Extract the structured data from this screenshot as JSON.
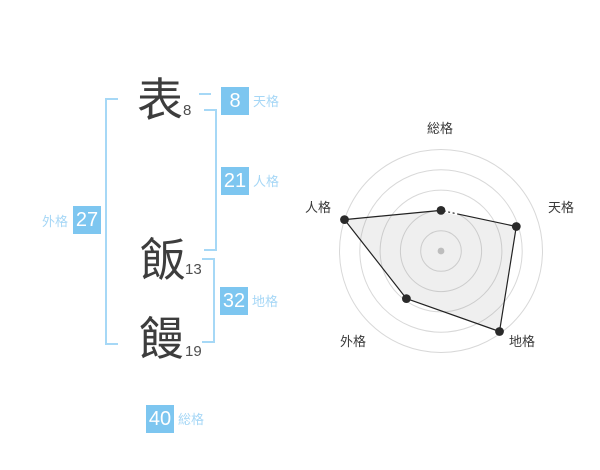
{
  "name": {
    "characters": [
      {
        "char": "表",
        "strokes": "8"
      },
      {
        "char": "飯",
        "strokes": "13"
      },
      {
        "char": "饅",
        "strokes": "19"
      }
    ]
  },
  "kaku": {
    "tenkaku": {
      "label": "天格",
      "value": "8"
    },
    "jinkaku": {
      "label": "人格",
      "value": "21"
    },
    "chikaku": {
      "label": "地格",
      "value": "32"
    },
    "gaikaku": {
      "label": "外格",
      "value": "27"
    },
    "soukaku": {
      "label": "総格",
      "value": "40"
    }
  },
  "colors": {
    "accent_box": "#7dc6f0",
    "accent_light": "#a6d8f6",
    "ink": "#3d3d3d",
    "grid_gray": "#d8d8d8",
    "fill_gray": "#f0f0f0"
  },
  "chart_data": {
    "type": "radar",
    "title": "",
    "axes": [
      "総格",
      "天格",
      "地格",
      "外格",
      "人格"
    ],
    "values": [
      2.0,
      3.9,
      4.9,
      2.9,
      5.0
    ],
    "max": 5,
    "rings": 5,
    "grid": "circular",
    "start_angle_deg": -90,
    "direction": "clockwise",
    "point_color": "#2a2a2a",
    "center_dot_color": "#bdbdbd"
  }
}
